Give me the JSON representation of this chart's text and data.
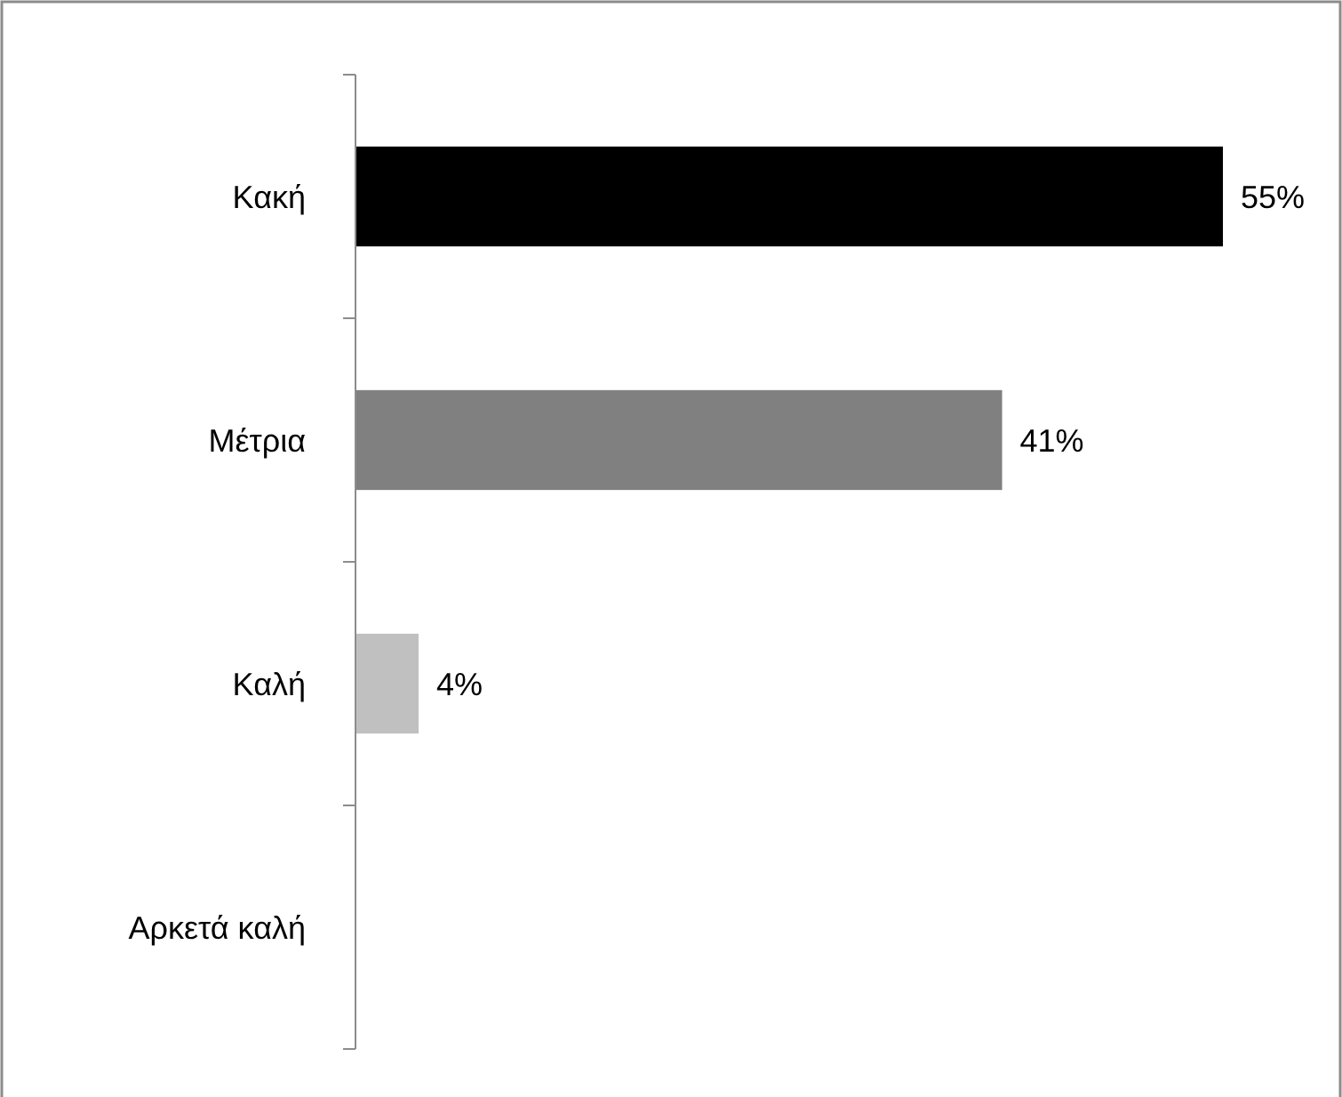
{
  "chart_data": {
    "type": "bar",
    "orientation": "horizontal",
    "categories": [
      "Κακή",
      "Μέτρια",
      "Καλή",
      "Αρκετά καλή"
    ],
    "values": [
      55,
      41,
      4,
      null
    ],
    "colors": [
      "#000000",
      "#808080",
      "#c0c0c0",
      null
    ],
    "value_labels": [
      "55%",
      "41%",
      "4%",
      null
    ]
  }
}
